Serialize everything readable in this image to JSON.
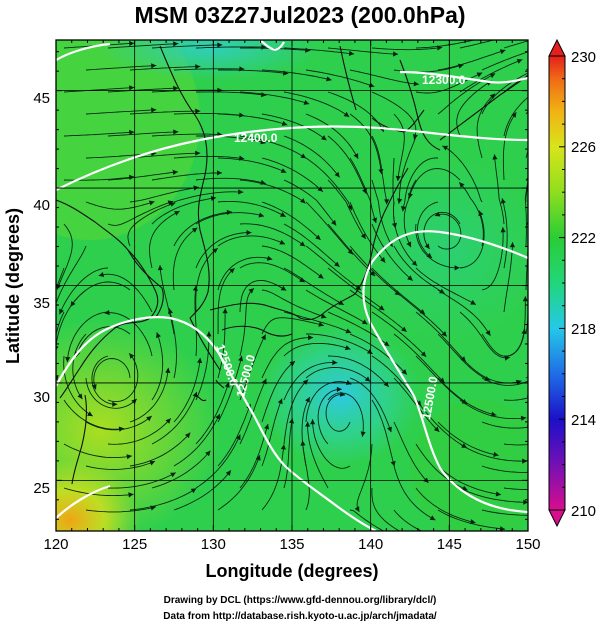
{
  "title": "MSM 03Z27Jul2023 (200.0hPa)",
  "xaxis": {
    "label": "Longitude (degrees)",
    "ticks": [
      "120",
      "125",
      "130",
      "135",
      "140",
      "145",
      "150"
    ],
    "range": [
      120,
      150
    ]
  },
  "yaxis": {
    "label": "Latitude  (degrees)",
    "ticks": [
      "25",
      "30",
      "35",
      "40",
      "45"
    ],
    "range": [
      22.4,
      47.6
    ]
  },
  "colorbar": {
    "ticks": [
      "230",
      "226",
      "222",
      "218",
      "214",
      "210"
    ],
    "range": [
      210,
      230
    ],
    "colors": [
      "#d80e8e",
      "#1c10c8",
      "#1f6ee6",
      "#25c8e8",
      "#22d67a",
      "#29cd35",
      "#8fde1e",
      "#d8e41c",
      "#f1b114",
      "#ef6a16",
      "#e4201c"
    ]
  },
  "contours": [
    {
      "label": "12300.0"
    },
    {
      "label": "12400.0"
    },
    {
      "label": "12500.0"
    },
    {
      "label": "12500.0"
    },
    {
      "label": "12500.0"
    }
  ],
  "credits": {
    "line1": "Drawing by DCL (https://www.gfd-dennou.org/library/dcl/)",
    "line2": "Data from http://database.rish.kyoto-u.ac.jp/arch/jmadata/"
  }
}
